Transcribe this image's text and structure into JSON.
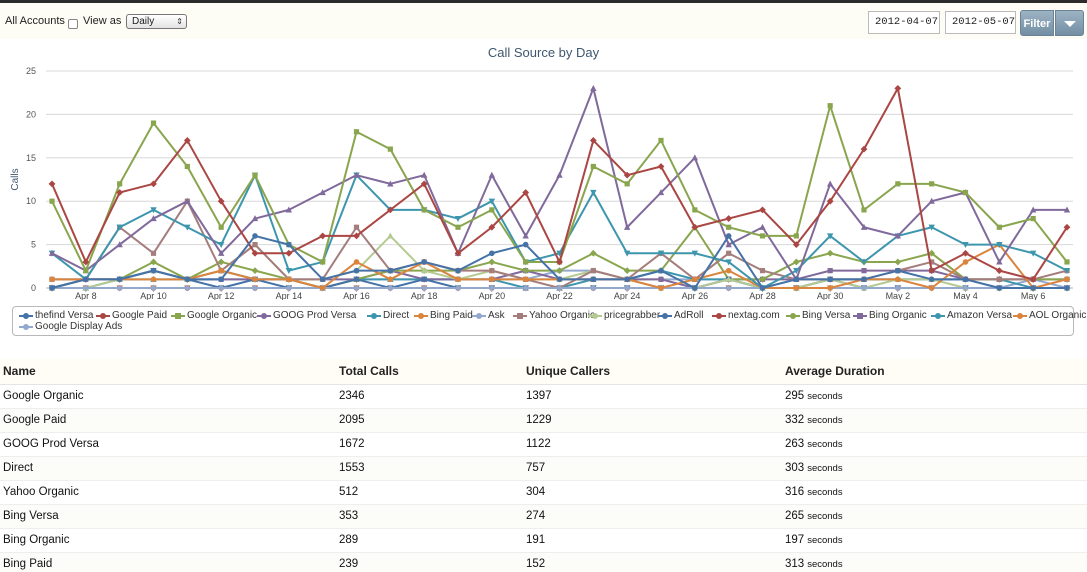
{
  "toolbar": {
    "all_accounts_label": "All Accounts",
    "view_as_label": "View as",
    "view_as_value": "Daily",
    "date_from": "2012-04-07",
    "date_to": "2012-05-07",
    "filter_label": "Filter"
  },
  "chart_data": {
    "type": "line",
    "title": "Call Source by Day",
    "ylabel": "Calls",
    "xlabel": "",
    "ylim": [
      0,
      25
    ],
    "yticks": [
      0,
      5,
      10,
      15,
      20,
      25
    ],
    "grid": true,
    "legend_position": "bottom",
    "x": [
      "Apr 7",
      "Apr 8",
      "Apr 9",
      "Apr 10",
      "Apr 11",
      "Apr 12",
      "Apr 13",
      "Apr 14",
      "Apr 15",
      "Apr 16",
      "Apr 17",
      "Apr 18",
      "Apr 19",
      "Apr 20",
      "Apr 21",
      "Apr 22",
      "Apr 23",
      "Apr 24",
      "Apr 25",
      "Apr 26",
      "Apr 27",
      "Apr 28",
      "Apr 29",
      "Apr 30",
      "May 1",
      "May 2",
      "May 3",
      "May 4",
      "May 5",
      "May 6",
      "May 7"
    ],
    "xtick_labels": [
      "Apr 8",
      "Apr 10",
      "Apr 12",
      "Apr 14",
      "Apr 16",
      "Apr 18",
      "Apr 20",
      "Apr 22",
      "Apr 24",
      "Apr 26",
      "Apr 28",
      "Apr 30",
      "May 2",
      "May 4",
      "May 6"
    ],
    "series": [
      {
        "name": "thefind Versa",
        "color": "#4572A7",
        "marker": "circle",
        "values": [
          0,
          1,
          1,
          2,
          1,
          1,
          6,
          5,
          1,
          2,
          2,
          3,
          2,
          4,
          5,
          1,
          1,
          1,
          2,
          0,
          6,
          0,
          1,
          1,
          1,
          2,
          1,
          1,
          0,
          0,
          0
        ]
      },
      {
        "name": "Google Paid",
        "color": "#AA4643",
        "marker": "diamond",
        "values": [
          12,
          3,
          11,
          12,
          17,
          10,
          4,
          4,
          6,
          6,
          9,
          12,
          4,
          7,
          11,
          3,
          17,
          13,
          14,
          7,
          8,
          9,
          5,
          10,
          16,
          23,
          2,
          4,
          2,
          1,
          7
        ]
      },
      {
        "name": "Google Organic",
        "color": "#89A54E",
        "marker": "square",
        "values": [
          10,
          2,
          12,
          19,
          14,
          7,
          13,
          5,
          3,
          18,
          16,
          9,
          7,
          9,
          3,
          3,
          14,
          12,
          17,
          9,
          7,
          6,
          6,
          21,
          9,
          12,
          12,
          11,
          7,
          8,
          3
        ]
      },
      {
        "name": "GOOG Prod Versa",
        "color": "#80699B",
        "marker": "triangle",
        "values": [
          4,
          2,
          5,
          8,
          10,
          4,
          8,
          9,
          11,
          13,
          12,
          13,
          4,
          13,
          6,
          13,
          23,
          7,
          11,
          15,
          5,
          7,
          1,
          12,
          7,
          6,
          10,
          11,
          3,
          9,
          9
        ]
      },
      {
        "name": "Direct",
        "color": "#3D96AE",
        "marker": "triangle-down",
        "values": [
          4,
          1,
          7,
          9,
          7,
          5,
          13,
          2,
          3,
          13,
          9,
          9,
          8,
          10,
          3,
          4,
          11,
          4,
          4,
          4,
          3,
          0,
          2,
          6,
          3,
          6,
          7,
          5,
          5,
          4,
          2
        ]
      },
      {
        "name": "Bing Paid",
        "color": "#DB843D",
        "marker": "circle",
        "values": [
          1,
          1,
          1,
          1,
          1,
          2,
          1,
          1,
          0,
          3,
          1,
          3,
          1,
          1,
          1,
          1,
          1,
          1,
          0,
          1,
          2,
          0,
          0,
          0,
          1,
          1,
          0,
          3,
          5,
          0,
          1
        ]
      },
      {
        "name": "Ask",
        "color": "#92A8CD",
        "marker": "diamond",
        "values": [
          0,
          0,
          0,
          0,
          0,
          0,
          0,
          0,
          0,
          0,
          0,
          0,
          0,
          0,
          0,
          0,
          0,
          0,
          0,
          0,
          0,
          0,
          0,
          0,
          0,
          0,
          0,
          0,
          0,
          0,
          0
        ]
      },
      {
        "name": "Yahoo Organic",
        "color": "#A47D7C",
        "marker": "square",
        "values": [
          1,
          1,
          7,
          4,
          10,
          2,
          5,
          1,
          1,
          7,
          2,
          3,
          2,
          2,
          1,
          0,
          2,
          1,
          4,
          1,
          4,
          2,
          1,
          1,
          1,
          2,
          3,
          1,
          1,
          1,
          2
        ]
      },
      {
        "name": "pricegrabber",
        "color": "#B5CA92",
        "marker": "triangle",
        "values": [
          0,
          0,
          1,
          2,
          1,
          2,
          5,
          1,
          1,
          2,
          6,
          2,
          1,
          2,
          1,
          1,
          2,
          1,
          0,
          0,
          1,
          0,
          0,
          1,
          0,
          1,
          1,
          0,
          0,
          0,
          0
        ]
      },
      {
        "name": "AdRoll",
        "color": "#4572A7",
        "marker": "triangle-down",
        "values": [
          0,
          1,
          1,
          2,
          1,
          0,
          1,
          0,
          0,
          1,
          0,
          1,
          0,
          0,
          0,
          0,
          0,
          0,
          0,
          0,
          1,
          0,
          0,
          1,
          0,
          0,
          0,
          0,
          0,
          0,
          0
        ]
      },
      {
        "name": "nextag.com",
        "color": "#AA4643",
        "marker": "circle",
        "values": [
          0,
          0,
          0,
          0,
          0,
          0,
          0,
          0,
          0,
          0,
          0,
          0,
          0,
          0,
          0,
          0,
          0,
          0,
          0,
          0,
          0,
          0,
          0,
          0,
          0,
          0,
          0,
          0,
          0,
          0,
          0
        ]
      },
      {
        "name": "Bing Versa",
        "color": "#89A54E",
        "marker": "diamond",
        "values": [
          0,
          1,
          1,
          3,
          1,
          3,
          2,
          1,
          0,
          1,
          2,
          2,
          2,
          3,
          2,
          2,
          4,
          2,
          2,
          7,
          1,
          1,
          3,
          4,
          3,
          3,
          4,
          1,
          1,
          1,
          1
        ]
      },
      {
        "name": "Bing Organic",
        "color": "#80699B",
        "marker": "square",
        "values": [
          0,
          1,
          1,
          2,
          1,
          1,
          1,
          1,
          1,
          1,
          2,
          1,
          1,
          1,
          2,
          1,
          1,
          1,
          1,
          0,
          1,
          1,
          1,
          2,
          2,
          2,
          2,
          1,
          1,
          1,
          1
        ]
      },
      {
        "name": "Amazon Versa",
        "color": "#3D96AE",
        "marker": "triangle",
        "values": [
          0,
          0,
          1,
          1,
          1,
          2,
          1,
          1,
          0,
          1,
          1,
          1,
          1,
          1,
          0,
          0,
          1,
          1,
          2,
          1,
          1,
          0,
          0,
          1,
          1,
          1,
          1,
          1,
          1,
          0,
          0
        ]
      },
      {
        "name": "AOL Organic",
        "color": "#DB843D",
        "marker": "triangle-down",
        "values": [
          0,
          0,
          0,
          0,
          0,
          0,
          0,
          0,
          0,
          0,
          0,
          0,
          0,
          0,
          0,
          0,
          0,
          0,
          0,
          0,
          0,
          0,
          0,
          0,
          0,
          0,
          0,
          0,
          0,
          0,
          0
        ]
      },
      {
        "name": "Google Display Ads",
        "color": "#92A8CD",
        "marker": "circle",
        "values": [
          1,
          1,
          1,
          2,
          1,
          1,
          1,
          1,
          0,
          1,
          1,
          1,
          1,
          1,
          1,
          2,
          2,
          1,
          1,
          1,
          1,
          0,
          1,
          1,
          1,
          1,
          1,
          1,
          0,
          1,
          0
        ]
      }
    ]
  },
  "table": {
    "headers": [
      "Name",
      "Total Calls",
      "Unique Callers",
      "Average Duration"
    ],
    "duration_unit": "seconds",
    "rows": [
      {
        "name": "Google Organic",
        "total": "2346",
        "unique": "1397",
        "duration": "295"
      },
      {
        "name": "Google Paid",
        "total": "2095",
        "unique": "1229",
        "duration": "332"
      },
      {
        "name": "GOOG Prod Versa",
        "total": "1672",
        "unique": "1122",
        "duration": "263"
      },
      {
        "name": "Direct",
        "total": "1553",
        "unique": "757",
        "duration": "303"
      },
      {
        "name": "Yahoo Organic",
        "total": "512",
        "unique": "304",
        "duration": "316"
      },
      {
        "name": "Bing Versa",
        "total": "353",
        "unique": "274",
        "duration": "265"
      },
      {
        "name": "Bing Organic",
        "total": "289",
        "unique": "191",
        "duration": "197"
      },
      {
        "name": "Bing Paid",
        "total": "239",
        "unique": "152",
        "duration": "313"
      }
    ]
  }
}
